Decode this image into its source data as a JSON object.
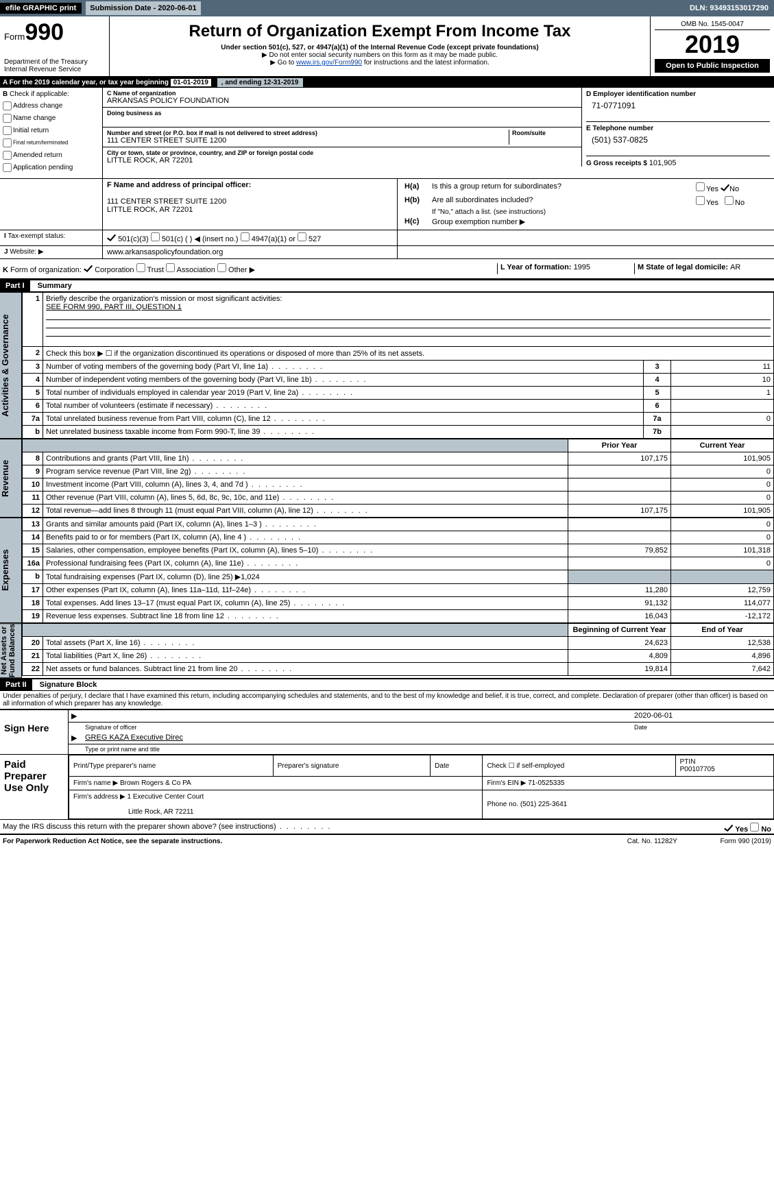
{
  "topbar": {
    "efile": "efile GRAPHIC print",
    "subdate_label": "Submission Date - 2020-06-01",
    "dln": "DLN: 93493153017290"
  },
  "header": {
    "form_prefix": "Form",
    "form_no": "990",
    "dept": "Department of the Treasury\nInternal Revenue Service",
    "title": "Return of Organization Exempt From Income Tax",
    "sub1": "Under section 501(c), 527, or 4947(a)(1) of the Internal Revenue Code (except private foundations)",
    "arrow1": "▶ Do not enter social security numbers on this form as it may be made public.",
    "arrow2_pre": "▶ Go to ",
    "arrow2_link": "www.irs.gov/Form990",
    "arrow2_post": " for instructions and the latest information.",
    "omb": "OMB No. 1545-0047",
    "year": "2019",
    "open": "Open to Public Inspection"
  },
  "sectionA": {
    "text_pre": "For the 2019 calendar year, or tax year beginning ",
    "begin": "01-01-2019",
    "mid": " , and ending ",
    "end": "12-31-2019"
  },
  "sectionB": {
    "label": "Check if applicable:",
    "opts": [
      "Address change",
      "Name change",
      "Initial return",
      "Final return/terminated",
      "Amended return",
      "Application pending"
    ]
  },
  "sectionC": {
    "name_lbl": "C Name of organization",
    "name": "ARKANSAS POLICY FOUNDATION",
    "dba_lbl": "Doing business as",
    "addr_lbl": "Number and street (or P.O. box if mail is not delivered to street address)",
    "room_lbl": "Room/suite",
    "addr": "111 CENTER STREET SUITE 1200",
    "city_lbl": "City or town, state or province, country, and ZIP or foreign postal code",
    "city": "LITTLE ROCK, AR  72201"
  },
  "sectionD": {
    "lbl": "D Employer identification number",
    "val": "71-0771091"
  },
  "sectionE": {
    "lbl": "E Telephone number",
    "val": "(501) 537-0825"
  },
  "sectionG": {
    "lbl": "G Gross receipts $ ",
    "val": "101,905"
  },
  "sectionF": {
    "lbl": "F Name and address of principal officer:",
    "line1": "111 CENTER STREET SUITE 1200",
    "line2": "LITTLE ROCK, AR  72201"
  },
  "sectionH": {
    "ha": "Is this a group return for subordinates?",
    "hb": "Are all subordinates included?",
    "hb_note": "If \"No,\" attach a list. (see instructions)",
    "hc": "Group exemption number ▶"
  },
  "sectionI": {
    "lbl": "Tax-exempt status:",
    "o1": "501(c)(3)",
    "o2": "501(c) (  ) ◀ (insert no.)",
    "o3": "4947(a)(1) or",
    "o4": "527"
  },
  "sectionJ": {
    "lbl": "Website: ▶",
    "val": "www.arkansaspolicyfoundation.org"
  },
  "sectionK": {
    "lbl": "Form of organization:",
    "o1": "Corporation",
    "o2": "Trust",
    "o3": "Association",
    "o4": "Other ▶"
  },
  "sectionL": {
    "lbl": "L Year of formation: ",
    "val": "1995"
  },
  "sectionM": {
    "lbl": "M State of legal domicile: ",
    "val": "AR"
  },
  "part1": {
    "hdr": "Part I",
    "title": "Summary"
  },
  "summary": {
    "q1_lbl": "Briefly describe the organization's mission or most significant activities:",
    "q1_val": "SEE FORM 990, PART III, QUESTION 1",
    "q2": "Check this box ▶ ☐ if the organization discontinued its operations or disposed of more than 25% of its net assets.",
    "lines_top": [
      {
        "n": "3",
        "d": "Number of voting members of the governing body (Part VI, line 1a)",
        "box": "3",
        "v": "11"
      },
      {
        "n": "4",
        "d": "Number of independent voting members of the governing body (Part VI, line 1b)",
        "box": "4",
        "v": "10"
      },
      {
        "n": "5",
        "d": "Total number of individuals employed in calendar year 2019 (Part V, line 2a)",
        "box": "5",
        "v": "1"
      },
      {
        "n": "6",
        "d": "Total number of volunteers (estimate if necessary)",
        "box": "6",
        "v": ""
      },
      {
        "n": "7a",
        "d": "Total unrelated business revenue from Part VIII, column (C), line 12",
        "box": "7a",
        "v": "0"
      },
      {
        "n": "b",
        "d": "Net unrelated business taxable income from Form 990-T, line 39",
        "box": "7b",
        "v": ""
      }
    ],
    "col_prior": "Prior Year",
    "col_curr": "Current Year",
    "revenue": [
      {
        "n": "8",
        "d": "Contributions and grants (Part VIII, line 1h)",
        "p": "107,175",
        "c": "101,905"
      },
      {
        "n": "9",
        "d": "Program service revenue (Part VIII, line 2g)",
        "p": "",
        "c": "0"
      },
      {
        "n": "10",
        "d": "Investment income (Part VIII, column (A), lines 3, 4, and 7d )",
        "p": "",
        "c": "0"
      },
      {
        "n": "11",
        "d": "Other revenue (Part VIII, column (A), lines 5, 6d, 8c, 9c, 10c, and 11e)",
        "p": "",
        "c": "0"
      },
      {
        "n": "12",
        "d": "Total revenue—add lines 8 through 11 (must equal Part VIII, column (A), line 12)",
        "p": "107,175",
        "c": "101,905"
      }
    ],
    "expenses": [
      {
        "n": "13",
        "d": "Grants and similar amounts paid (Part IX, column (A), lines 1–3 )",
        "p": "",
        "c": "0"
      },
      {
        "n": "14",
        "d": "Benefits paid to or for members (Part IX, column (A), line 4 )",
        "p": "",
        "c": "0"
      },
      {
        "n": "15",
        "d": "Salaries, other compensation, employee benefits (Part IX, column (A), lines 5–10)",
        "p": "79,852",
        "c": "101,318"
      },
      {
        "n": "16a",
        "d": "Professional fundraising fees (Part IX, column (A), line 11e)",
        "p": "",
        "c": "0"
      },
      {
        "n": "b",
        "d": "Total fundraising expenses (Part IX, column (D), line 25) ▶1,024",
        "p": "shade",
        "c": "shade"
      },
      {
        "n": "17",
        "d": "Other expenses (Part IX, column (A), lines 11a–11d, 11f–24e)",
        "p": "11,280",
        "c": "12,759"
      },
      {
        "n": "18",
        "d": "Total expenses. Add lines 13–17 (must equal Part IX, column (A), line 25)",
        "p": "91,132",
        "c": "114,077"
      },
      {
        "n": "19",
        "d": "Revenue less expenses. Subtract line 18 from line 12",
        "p": "16,043",
        "c": "-12,172"
      }
    ],
    "col_beg": "Beginning of Current Year",
    "col_end": "End of Year",
    "netassets": [
      {
        "n": "20",
        "d": "Total assets (Part X, line 16)",
        "p": "24,623",
        "c": "12,538"
      },
      {
        "n": "21",
        "d": "Total liabilities (Part X, line 26)",
        "p": "4,809",
        "c": "4,896"
      },
      {
        "n": "22",
        "d": "Net assets or fund balances. Subtract line 21 from line 20",
        "p": "19,814",
        "c": "7,642"
      }
    ],
    "side_labels": {
      "ag": "Activities & Governance",
      "rev": "Revenue",
      "exp": "Expenses",
      "na": "Net Assets or\nFund Balances"
    }
  },
  "part2": {
    "hdr": "Part II",
    "title": "Signature Block",
    "perjury": "Under penalties of perjury, I declare that I have examined this return, including accompanying schedules and statements, and to the best of my knowledge and belief, it is true, correct, and complete. Declaration of preparer (other than officer) is based on all information of which preparer has any knowledge."
  },
  "sign": {
    "lbl": "Sign Here",
    "date": "2020-06-01",
    "sig_lbl": "Signature of officer",
    "date_lbl": "Date",
    "name": "GREG KAZA Executive Direc",
    "name_lbl": "Type or print name and title"
  },
  "paid": {
    "lbl": "Paid Preparer Use Only",
    "h_name": "Print/Type preparer's name",
    "h_sig": "Preparer's signature",
    "h_date": "Date",
    "h_check": "Check ☐ if self-employed",
    "h_ptin_l": "PTIN",
    "h_ptin": "P00107705",
    "firm_lbl": "Firm's name    ▶",
    "firm": "Brown Rogers & Co PA",
    "ein_lbl": "Firm's EIN ▶",
    "ein": "71-0525335",
    "addr_lbl": "Firm's address ▶",
    "addr1": "1 Executive Center Court",
    "addr2": "Little Rock, AR  72211",
    "phone_lbl": "Phone no. ",
    "phone": "(501) 225-3641"
  },
  "discuss": "May the IRS discuss this return with the preparer shown above? (see instructions)",
  "foot": {
    "left": "For Paperwork Reduction Act Notice, see the separate instructions.",
    "mid": "Cat. No. 11282Y",
    "right": "Form 990 (2019)"
  },
  "colors": {
    "slab": "#b8c4cc",
    "header_bg": "#52687a"
  }
}
